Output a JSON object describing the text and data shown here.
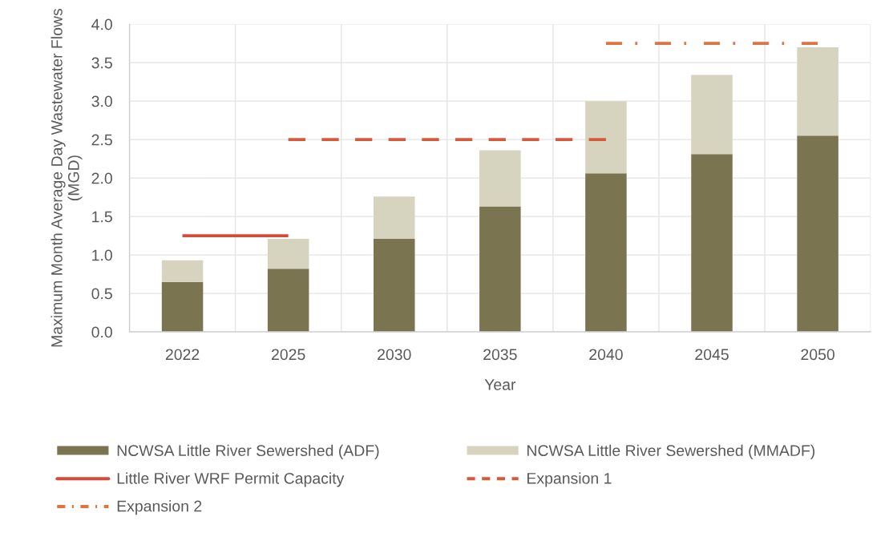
{
  "chart_data": {
    "type": "bar",
    "stacked": true,
    "xlabel": "Year",
    "ylabel": "Maximum Month Average Day Wastewater Flows\n(MGD)",
    "categories": [
      "2022",
      "2025",
      "2030",
      "2035",
      "2040",
      "2045",
      "2050"
    ],
    "series": [
      {
        "name": "NCWSA Little River Sewershed (ADF)",
        "color": "#7a7550",
        "values": [
          0.65,
          0.82,
          1.21,
          1.63,
          2.06,
          2.31,
          2.55
        ]
      },
      {
        "name": "NCWSA Little River Sewershed (MMADF)",
        "color": "#d6d4bf",
        "values": [
          0.28,
          0.39,
          0.55,
          0.73,
          0.94,
          1.03,
          1.15
        ]
      },
      {
        "name": "Little River WRF Permit Capacity",
        "type": "line",
        "line_style": "solid",
        "color": "#d94a36",
        "values": [
          1.25,
          1.25,
          null,
          null,
          null,
          null,
          null
        ]
      },
      {
        "name": "Expansion 1",
        "type": "line",
        "line_style": "dashed",
        "color": "#d6593a",
        "values": [
          null,
          2.5,
          2.5,
          2.5,
          2.5,
          null,
          null
        ]
      },
      {
        "name": "Expansion 2",
        "type": "line",
        "line_style": "dashdot",
        "color": "#e0733e",
        "values": [
          null,
          null,
          null,
          null,
          3.75,
          3.75,
          3.75
        ]
      }
    ],
    "ylim": [
      0,
      4
    ],
    "yticks": [
      {
        "value": 0,
        "label": "0.0"
      },
      {
        "value": 0.5,
        "label": "0.5"
      },
      {
        "value": 1,
        "label": "1.0"
      },
      {
        "value": 1.5,
        "label": "1.5"
      },
      {
        "value": 2,
        "label": "2.0"
      },
      {
        "value": 2.5,
        "label": "2.5"
      },
      {
        "value": 3,
        "label": "3.0"
      },
      {
        "value": 3.5,
        "label": "3.5"
      },
      {
        "value": 4,
        "label": "4.0"
      }
    ],
    "grid": true,
    "legend": "bottom"
  }
}
